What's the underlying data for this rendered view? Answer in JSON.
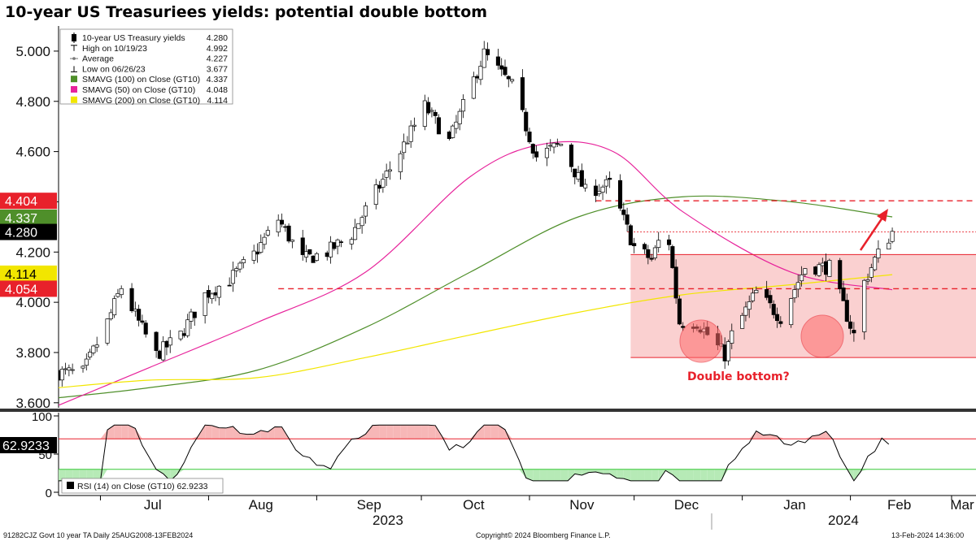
{
  "title": "10-year US Treasuriees yields: potential double bottom",
  "colors": {
    "candle_up": "#ffffff",
    "candle_down": "#000000",
    "sma100": "#4f8f2a",
    "sma50": "#e7239b",
    "sma200": "#f2e600",
    "rsi_line": "#000000",
    "rsi_overbought_fill": "#f7b7b7",
    "rsi_oversold_fill": "#b6eab6",
    "range_box": "#f9c8c8",
    "annotation": "#e8212b"
  },
  "legend": {
    "items": [
      {
        "label": "10-year US Treasury yields",
        "value": "4.280",
        "marker": "candle",
        "color": "#000000"
      },
      {
        "label": "High on 10/19/23",
        "value": "4.992",
        "marker": "high-tick",
        "color": "#000000"
      },
      {
        "label": "Average",
        "value": "4.227",
        "marker": "avg-line",
        "color": "#777777"
      },
      {
        "label": "Low on 06/26/23",
        "value": "3.677",
        "marker": "low-tick",
        "color": "#000000"
      },
      {
        "label": "SMAVG (100)  on Close (GT10)",
        "value": "4.337",
        "marker": "swatch",
        "color": "#4f8f2a"
      },
      {
        "label": "SMAVG (50)  on Close (GT10)",
        "value": "4.048",
        "marker": "swatch",
        "color": "#e7239b"
      },
      {
        "label": "SMAVG (200)  on Close (GT10)",
        "value": "4.114",
        "marker": "swatch",
        "color": "#f2e600"
      }
    ]
  },
  "price_tags": [
    {
      "value": "4.404",
      "y": 4.404,
      "bg": "#e8212b",
      "fg": "#ffffff"
    },
    {
      "value": "4.337",
      "y": 4.337,
      "bg": "#4f8f2a",
      "fg": "#ffffff"
    },
    {
      "value": "4.280",
      "y": 4.28,
      "bg": "#000000",
      "fg": "#ffffff"
    },
    {
      "value": "4.114",
      "y": 4.114,
      "bg": "#f2e600",
      "fg": "#000000"
    },
    {
      "value": "4.054",
      "y": 4.054,
      "bg": "#e8212b",
      "fg": "#ffffff"
    }
  ],
  "annotation": {
    "text": "Double bottom?"
  },
  "rsi": {
    "legend": "RSI (14)  on Close (GT10) 62.9233",
    "value_tag": "62.9233",
    "ticks": [
      "100",
      "50",
      "0"
    ],
    "overbought": 70,
    "oversold": 30
  },
  "x_axis": {
    "months": [
      "Jul",
      "Aug",
      "Sep",
      "Oct",
      "Nov",
      "Dec",
      "Jan",
      "Feb",
      "Mar"
    ],
    "years": [
      "2023",
      "2024"
    ]
  },
  "footer": {
    "left": "91282CJZ Govt 10 year TA  Daily 25AUG2008-13FEB2024",
    "center": "Copyright© 2024 Bloomberg Finance L.P.",
    "right": "13-Feb-2024 14:36:00"
  },
  "chart_data": {
    "type": "candlestick",
    "title": "10-year US Treasuriees yields: potential double bottom",
    "y_ticks": [
      "5.000",
      "4.800",
      "4.600",
      "4.400",
      "4.200",
      "4.000",
      "3.800",
      "3.600"
    ],
    "ylim": [
      3.58,
      5.1
    ],
    "x_range": [
      "2023-06-19",
      "2024-03-08"
    ],
    "reference_levels": {
      "resistance": 4.404,
      "support": 4.054,
      "last": 4.28,
      "range_top": 4.19,
      "range_bottom": 3.78
    },
    "close_path": [
      [
        "2023-06-19",
        3.72
      ],
      [
        "2023-06-26",
        3.72
      ],
      [
        "2023-07-03",
        3.92
      ],
      [
        "2023-07-07",
        4.06
      ],
      [
        "2023-07-12",
        3.92
      ],
      [
        "2023-07-17",
        3.79
      ],
      [
        "2023-07-24",
        3.87
      ],
      [
        "2023-07-31",
        4.03
      ],
      [
        "2023-08-07",
        4.09
      ],
      [
        "2023-08-14",
        4.19
      ],
      [
        "2023-08-21",
        4.33
      ],
      [
        "2023-08-28",
        4.17
      ],
      [
        "2023-09-04",
        4.2
      ],
      [
        "2023-09-11",
        4.27
      ],
      [
        "2023-09-18",
        4.44
      ],
      [
        "2023-09-25",
        4.6
      ],
      [
        "2023-10-02",
        4.78
      ],
      [
        "2023-10-09",
        4.64
      ],
      [
        "2023-10-19",
        4.99
      ],
      [
        "2023-10-27",
        4.86
      ],
      [
        "2023-11-03",
        4.58
      ],
      [
        "2023-11-10",
        4.63
      ],
      [
        "2023-11-17",
        4.44
      ],
      [
        "2023-11-24",
        4.47
      ],
      [
        "2023-12-01",
        4.22
      ],
      [
        "2023-12-06",
        4.17
      ],
      [
        "2023-12-08",
        4.24
      ],
      [
        "2023-12-11",
        4.24
      ],
      [
        "2023-12-14",
        3.92
      ],
      [
        "2023-12-19",
        3.92
      ],
      [
        "2023-12-27",
        3.79
      ],
      [
        "2023-12-29",
        3.87
      ],
      [
        "2024-01-05",
        4.04
      ],
      [
        "2024-01-12",
        3.94
      ],
      [
        "2024-01-19",
        4.14
      ],
      [
        "2024-01-26",
        4.14
      ],
      [
        "2024-02-02",
        3.87
      ],
      [
        "2024-02-05",
        4.08
      ],
      [
        "2024-02-08",
        4.17
      ],
      [
        "2024-02-13",
        4.28
      ]
    ],
    "series": [
      {
        "name": "SMAVG (100)  on Close (GT10)",
        "last": 4.337,
        "values": [
          [
            "2023-06-19",
            3.62
          ],
          [
            "2023-07-15",
            3.66
          ],
          [
            "2023-08-15",
            3.73
          ],
          [
            "2023-09-15",
            3.9
          ],
          [
            "2023-10-15",
            4.12
          ],
          [
            "2023-11-15",
            4.34
          ],
          [
            "2023-12-15",
            4.42
          ],
          [
            "2024-01-15",
            4.4
          ],
          [
            "2024-02-13",
            4.34
          ]
        ]
      },
      {
        "name": "SMAVG (50)  on Close (GT10)",
        "last": 4.048,
        "values": [
          [
            "2023-06-19",
            3.59
          ],
          [
            "2023-07-15",
            3.74
          ],
          [
            "2023-08-15",
            3.92
          ],
          [
            "2023-09-15",
            4.12
          ],
          [
            "2023-10-15",
            4.5
          ],
          [
            "2023-11-05",
            4.63
          ],
          [
            "2023-11-25",
            4.6
          ],
          [
            "2023-12-15",
            4.36
          ],
          [
            "2024-01-15",
            4.12
          ],
          [
            "2024-02-13",
            4.05
          ]
        ]
      },
      {
        "name": "SMAVG (200)  on Close (GT10)",
        "last": 4.114,
        "values": [
          [
            "2023-06-19",
            3.66
          ],
          [
            "2023-07-15",
            3.69
          ],
          [
            "2023-08-15",
            3.7
          ],
          [
            "2023-09-15",
            3.78
          ],
          [
            "2023-10-15",
            3.87
          ],
          [
            "2023-11-15",
            3.96
          ],
          [
            "2023-12-15",
            4.03
          ],
          [
            "2024-01-15",
            4.07
          ],
          [
            "2024-02-13",
            4.11
          ]
        ]
      }
    ]
  }
}
